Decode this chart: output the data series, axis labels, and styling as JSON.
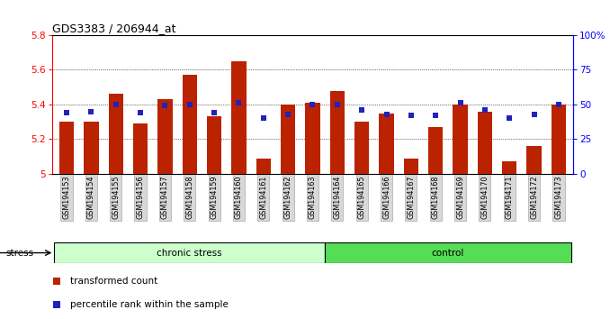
{
  "title": "GDS3383 / 206944_at",
  "samples": [
    "GSM194153",
    "GSM194154",
    "GSM194155",
    "GSM194156",
    "GSM194157",
    "GSM194158",
    "GSM194159",
    "GSM194160",
    "GSM194161",
    "GSM194162",
    "GSM194163",
    "GSM194164",
    "GSM194165",
    "GSM194166",
    "GSM194167",
    "GSM194168",
    "GSM194169",
    "GSM194170",
    "GSM194171",
    "GSM194172",
    "GSM194173"
  ],
  "transformed_count": [
    5.3,
    5.3,
    5.46,
    5.29,
    5.43,
    5.57,
    5.33,
    5.65,
    5.09,
    5.4,
    5.41,
    5.48,
    5.3,
    5.35,
    5.09,
    5.27,
    5.4,
    5.36,
    5.07,
    5.16,
    5.4
  ],
  "percentile_rank": [
    44,
    45,
    50,
    44,
    49,
    50,
    44,
    51,
    40,
    43,
    50,
    50,
    46,
    43,
    42,
    42,
    51,
    46,
    40,
    43,
    50
  ],
  "bar_color": "#bb2200",
  "dot_color": "#2222bb",
  "ylim_left": [
    5.0,
    5.8
  ],
  "ylim_right": [
    0,
    100
  ],
  "yticks_left": [
    5.0,
    5.2,
    5.4,
    5.6,
    5.8
  ],
  "ytick_left_labels": [
    "5",
    "5.2",
    "5.4",
    "5.6",
    "5.8"
  ],
  "yticks_right": [
    0,
    25,
    50,
    75,
    100
  ],
  "ytick_right_labels": [
    "0",
    "25",
    "50",
    "75",
    "100%"
  ],
  "chronic_count": 11,
  "control_count": 10,
  "group_chronic_label": "chronic stress",
  "group_control_label": "control",
  "stress_label": "stress",
  "legend_bar_label": "transformed count",
  "legend_dot_label": "percentile rank within the sample",
  "group_color_chronic": "#ccffcc",
  "group_color_control": "#55dd55",
  "grid_dotted_at": [
    5.2,
    5.4,
    5.6
  ]
}
